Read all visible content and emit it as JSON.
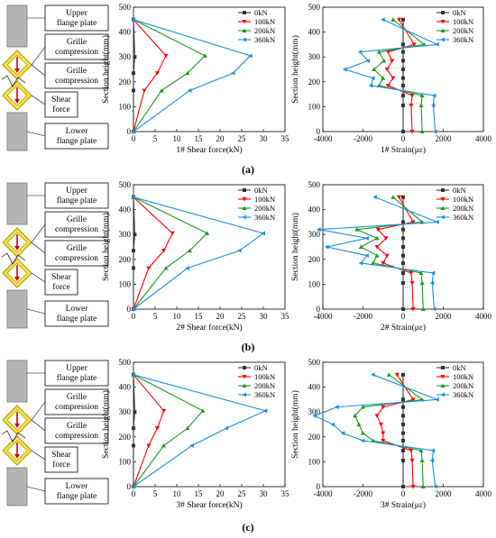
{
  "diagram_labels": {
    "upper": "Upper\nflange plate",
    "grille1": "Grille\ncompression",
    "grille2": "Grille\ncompression",
    "shear": "Shear\nforce",
    "lower": "Lower\nflange plate"
  },
  "panels": [
    {
      "label": "(a)"
    },
    {
      "label": "(b)"
    },
    {
      "label": "(c)"
    }
  ],
  "colors": {
    "0kN": "#333333",
    "100kN": "#ff0000",
    "200kN": "#1a9a1a",
    "360kN": "#1a8fe0",
    "pink": "#e0007a",
    "purple": "#8a2be2"
  },
  "chart_data": [
    {
      "type": "line",
      "xlabel": "1# Shear force(kN)",
      "ylabel": "Section height(mm)",
      "xlim": [
        0,
        35
      ],
      "ylim": [
        0,
        500
      ],
      "xticks": [
        0,
        5,
        10,
        15,
        20,
        25,
        30,
        35
      ],
      "yticks": [
        0,
        100,
        200,
        300,
        400,
        500
      ],
      "legend": "top-right",
      "series": [
        {
          "name": "0kN",
          "points": [
            [
              0,
              450
            ],
            [
              0.3,
              300
            ],
            [
              0,
              235
            ],
            [
              0,
              165
            ],
            [
              0,
              0
            ]
          ]
        },
        {
          "name": "100kN",
          "points": [
            [
              0,
              450
            ],
            [
              7.5,
              305
            ],
            [
              5.5,
              235
            ],
            [
              2.5,
              165
            ],
            [
              0,
              0
            ]
          ]
        },
        {
          "name": "200kN",
          "points": [
            [
              0,
              450
            ],
            [
              16.5,
              305
            ],
            [
              12.5,
              235
            ],
            [
              6.5,
              165
            ],
            [
              0,
              0
            ]
          ]
        },
        {
          "name": "360kN",
          "points": [
            [
              0,
              450
            ],
            [
              27,
              305
            ],
            [
              23,
              235
            ],
            [
              13,
              165
            ],
            [
              0,
              0
            ]
          ]
        }
      ]
    },
    {
      "type": "line",
      "xlabel": "1# Strain(με)",
      "ylabel": "Section height(mm)",
      "xlim": [
        -4000,
        4000
      ],
      "ylim": [
        0,
        500
      ],
      "xticks": [
        -4000,
        -2000,
        0,
        2000,
        4000
      ],
      "yticks": [
        0,
        100,
        200,
        300,
        400,
        500
      ],
      "legend": "top-right",
      "series": [
        {
          "name": "0kN",
          "points": [
            [
              0,
              450
            ],
            [
              0,
              350
            ],
            [
              0,
              320
            ],
            [
              0,
              285
            ],
            [
              0,
              250
            ],
            [
              0,
              215
            ],
            [
              0,
              185
            ],
            [
              0,
              145
            ],
            [
              0,
              105
            ],
            [
              0,
              0
            ]
          ]
        },
        {
          "name": "100kN",
          "points": [
            [
              -200,
              450
            ],
            [
              550,
              350
            ],
            [
              -750,
              320
            ],
            [
              -550,
              285
            ],
            [
              -800,
              250
            ],
            [
              -500,
              215
            ],
            [
              -750,
              185
            ],
            [
              450,
              145
            ],
            [
              400,
              105
            ],
            [
              450,
              0
            ]
          ]
        },
        {
          "name": "200kN",
          "points": [
            [
              -500,
              450
            ],
            [
              1050,
              350
            ],
            [
              -1200,
              320
            ],
            [
              -950,
              285
            ],
            [
              -1450,
              250
            ],
            [
              -1000,
              215
            ],
            [
              -1200,
              185
            ],
            [
              950,
              145
            ],
            [
              900,
              105
            ],
            [
              950,
              0
            ]
          ]
        },
        {
          "name": "360kN",
          "points": [
            [
              -1000,
              450
            ],
            [
              1700,
              350
            ],
            [
              -2150,
              320
            ],
            [
              -1750,
              285
            ],
            [
              -2900,
              250
            ],
            [
              -1500,
              215
            ],
            [
              -1600,
              185
            ],
            [
              1550,
              145
            ],
            [
              1500,
              105
            ],
            [
              1600,
              0
            ]
          ]
        }
      ]
    },
    {
      "type": "line",
      "xlabel": "2# Shear force(kN)",
      "ylabel": "Section height(mm)",
      "xlim": [
        0,
        35
      ],
      "ylim": [
        0,
        500
      ],
      "xticks": [
        0,
        5,
        10,
        15,
        20,
        25,
        30,
        35
      ],
      "yticks": [
        0,
        100,
        200,
        300,
        400,
        500
      ],
      "legend": "top-right",
      "series": [
        {
          "name": "0kN",
          "points": [
            [
              0,
              450
            ],
            [
              0.3,
              300
            ],
            [
              0,
              235
            ],
            [
              0,
              165
            ],
            [
              0,
              0
            ]
          ]
        },
        {
          "name": "100kN",
          "points": [
            [
              0,
              450
            ],
            [
              9,
              305
            ],
            [
              7,
              235
            ],
            [
              3.5,
              165
            ],
            [
              0,
              0
            ]
          ]
        },
        {
          "name": "200kN",
          "points": [
            [
              0,
              450
            ],
            [
              17,
              305
            ],
            [
              13,
              235
            ],
            [
              7.5,
              165
            ],
            [
              0,
              0
            ]
          ]
        },
        {
          "name": "360kN",
          "points": [
            [
              0,
              450
            ],
            [
              30,
              305
            ],
            [
              24.5,
              235
            ],
            [
              12.5,
              165
            ],
            [
              0,
              0
            ]
          ]
        }
      ]
    },
    {
      "type": "line",
      "xlabel": "2# Strain(με)",
      "ylabel": "Section height(mm)",
      "xlim": [
        -4000,
        4000
      ],
      "ylim": [
        0,
        500
      ],
      "xticks": [
        -4000,
        -2000,
        0,
        2000,
        4000
      ],
      "yticks": [
        0,
        100,
        200,
        300,
        400,
        500
      ],
      "legend": "top-right",
      "series": [
        {
          "name": "0kN",
          "points": [
            [
              0,
              450
            ],
            [
              0,
              350
            ],
            [
              0,
              320
            ],
            [
              0,
              285
            ],
            [
              0,
              250
            ],
            [
              0,
              215
            ],
            [
              0,
              185
            ],
            [
              0,
              145
            ],
            [
              0,
              105
            ],
            [
              0,
              0
            ]
          ]
        },
        {
          "name": "100kN",
          "points": [
            [
              -200,
              450
            ],
            [
              500,
              350
            ],
            [
              -1250,
              320
            ],
            [
              -850,
              285
            ],
            [
              -1300,
              250
            ],
            [
              -800,
              215
            ],
            [
              -1000,
              185
            ],
            [
              400,
              145
            ],
            [
              450,
              105
            ],
            [
              500,
              0
            ]
          ]
        },
        {
          "name": "200kN",
          "points": [
            [
              -500,
              450
            ],
            [
              950,
              350
            ],
            [
              -2300,
              320
            ],
            [
              -1300,
              285
            ],
            [
              -2100,
              250
            ],
            [
              -1300,
              215
            ],
            [
              -1500,
              185
            ],
            [
              900,
              145
            ],
            [
              950,
              105
            ],
            [
              1000,
              0
            ]
          ]
        },
        {
          "name": "360kN",
          "points": [
            [
              -1400,
              450
            ],
            [
              1700,
              350
            ],
            [
              -4200,
              320
            ],
            [
              -1800,
              285
            ],
            [
              -3800,
              250
            ],
            [
              -1800,
              215
            ],
            [
              -2100,
              185
            ],
            [
              1500,
              145
            ],
            [
              1450,
              105
            ],
            [
              1550,
              0
            ]
          ]
        }
      ]
    },
    {
      "type": "line",
      "xlabel": "3# Shear force(kN)",
      "ylabel": "Section height(mm)",
      "xlim": [
        0,
        35
      ],
      "ylim": [
        0,
        500
      ],
      "xticks": [
        0,
        5,
        10,
        15,
        20,
        25,
        30,
        35
      ],
      "yticks": [
        0,
        100,
        200,
        300,
        400,
        500
      ],
      "legend": "top-right",
      "series": [
        {
          "name": "0kN",
          "points": [
            [
              0,
              450
            ],
            [
              0.3,
              300
            ],
            [
              0,
              235
            ],
            [
              0,
              165
            ],
            [
              0,
              0
            ]
          ]
        },
        {
          "name": "100kN",
          "points": [
            [
              0,
              450
            ],
            [
              7,
              305
            ],
            [
              5.5,
              235
            ],
            [
              3.5,
              165
            ],
            [
              0,
              0
            ]
          ]
        },
        {
          "name": "200kN",
          "points": [
            [
              0,
              450
            ],
            [
              16,
              305
            ],
            [
              12.5,
              235
            ],
            [
              7,
              165
            ],
            [
              0,
              0
            ]
          ]
        },
        {
          "name": "360kN",
          "points": [
            [
              0,
              450
            ],
            [
              30.5,
              305
            ],
            [
              21.5,
              235
            ],
            [
              13.5,
              165
            ],
            [
              0,
              0
            ]
          ]
        }
      ]
    },
    {
      "type": "line",
      "xlabel": "3# Strain(με)",
      "ylabel": "Section height(mm)",
      "xlim": [
        -4000,
        4000
      ],
      "ylim": [
        0,
        500
      ],
      "xticks": [
        -4000,
        -2000,
        0,
        2000,
        4000
      ],
      "yticks": [
        0,
        100,
        200,
        300,
        400,
        500
      ],
      "legend": "top-right",
      "series": [
        {
          "name": "0kN",
          "points": [
            [
              0,
              450
            ],
            [
              0,
              350
            ],
            [
              0,
              320
            ],
            [
              0,
              285
            ],
            [
              0,
              250
            ],
            [
              0,
              215
            ],
            [
              0,
              185
            ],
            [
              0,
              145
            ],
            [
              0,
              105
            ],
            [
              0,
              0
            ]
          ]
        },
        {
          "name": "100kN",
          "points": [
            [
              -300,
              450
            ],
            [
              500,
              350
            ],
            [
              -1000,
              320
            ],
            [
              -1300,
              285
            ],
            [
              -1100,
              250
            ],
            [
              -1000,
              215
            ],
            [
              -1000,
              185
            ],
            [
              400,
              145
            ],
            [
              450,
              105
            ],
            [
              500,
              0
            ]
          ]
        },
        {
          "name": "200kN",
          "points": [
            [
              -700,
              450
            ],
            [
              950,
              350
            ],
            [
              -2000,
              320
            ],
            [
              -2400,
              285
            ],
            [
              -2200,
              250
            ],
            [
              -2000,
              215
            ],
            [
              -1500,
              185
            ],
            [
              900,
              145
            ],
            [
              950,
              105
            ],
            [
              1000,
              0
            ]
          ]
        },
        {
          "name": "360kN",
          "points": [
            [
              -1500,
              450
            ],
            [
              1700,
              350
            ],
            [
              -3300,
              320
            ],
            [
              -4400,
              285
            ],
            [
              -3500,
              250
            ],
            [
              -3000,
              215
            ],
            [
              -2000,
              185
            ],
            [
              1500,
              145
            ],
            [
              1450,
              105
            ],
            [
              1600,
              0
            ]
          ]
        }
      ]
    }
  ]
}
